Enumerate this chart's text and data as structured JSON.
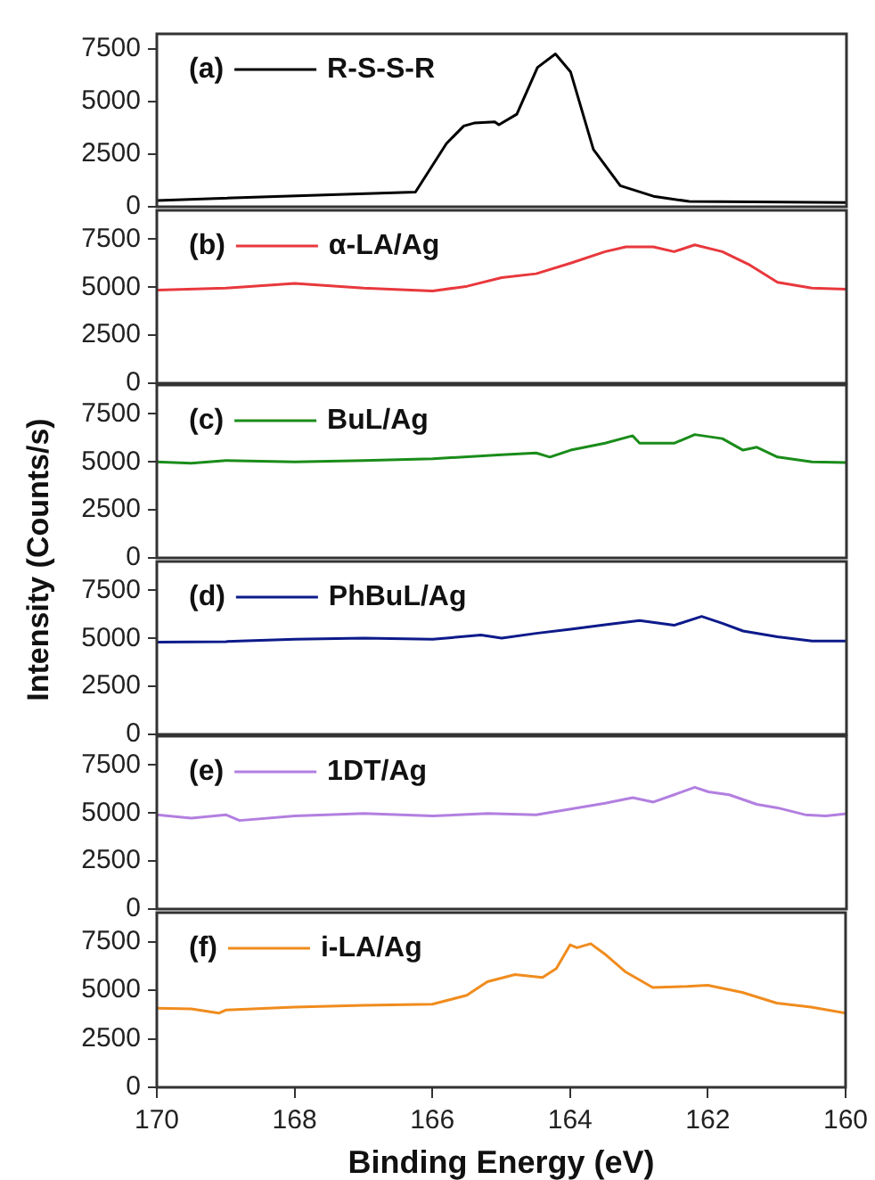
{
  "chart_data": [
    {
      "type": "line",
      "annotations": [
        "(a)"
      ],
      "legend": "top left",
      "tick_labels": "y",
      "xlim": [
        170,
        160
      ],
      "xticks": [
        170,
        168,
        166,
        164,
        162,
        160
      ],
      "ylim": [
        0,
        8200
      ],
      "yticks": [
        0,
        2500,
        5000,
        7500
      ],
      "series": [
        {
          "name": "R-S-S-R",
          "color": "#000000",
          "x": [
            170,
            166.25,
            165.8,
            165.55,
            165.4,
            165.1,
            165.04,
            164.78,
            164.48,
            164.22,
            164.0,
            163.67,
            163.28,
            162.8,
            162.28,
            160
          ],
          "values": [
            300,
            700,
            3000,
            3830,
            3970,
            4030,
            3890,
            4390,
            6610,
            7250,
            6390,
            2720,
            1000,
            500,
            250,
            200
          ]
        }
      ]
    },
    {
      "type": "line",
      "annotations": [
        "(b)"
      ],
      "legend": "top left",
      "tick_labels": "y",
      "xlim": [
        170,
        160
      ],
      "xticks": [
        170,
        168,
        166,
        164,
        162,
        160
      ],
      "ylim": [
        0,
        9000
      ],
      "yticks": [
        0,
        2500,
        5000,
        7500
      ],
      "series": [
        {
          "name": "α-LA/Ag",
          "color": "#e8383d",
          "x": [
            170,
            169,
            168,
            167,
            166,
            165.5,
            165,
            164.5,
            164,
            163.5,
            163.2,
            162.8,
            162.5,
            162.2,
            161.8,
            161.4,
            161,
            160.5,
            160
          ],
          "values": [
            4850,
            4950,
            5200,
            4950,
            4800,
            5050,
            5500,
            5700,
            6250,
            6850,
            7100,
            7100,
            6850,
            7200,
            6850,
            6150,
            5250,
            4950,
            4900
          ]
        }
      ]
    },
    {
      "type": "line",
      "annotations": [
        "(c)"
      ],
      "legend": "top left",
      "tick_labels": "y",
      "ylabel": "Intensity (Counts/s)",
      "xlim": [
        170,
        160
      ],
      "xticks": [
        170,
        168,
        166,
        164,
        162,
        160
      ],
      "ylim": [
        0,
        9000
      ],
      "yticks": [
        0,
        2500,
        5000,
        7500
      ],
      "series": [
        {
          "name": "BuL/Ag",
          "color": "#1a8c1a",
          "x": [
            170,
            169.5,
            169,
            168,
            167,
            166,
            165,
            164.5,
            164.3,
            164,
            163.5,
            163.1,
            163,
            162.5,
            162.2,
            161.8,
            161.5,
            161.3,
            161,
            160.5,
            160
          ],
          "values": [
            5000,
            4930,
            5070,
            5000,
            5070,
            5160,
            5370,
            5460,
            5250,
            5610,
            5970,
            6360,
            5970,
            5970,
            6420,
            6210,
            5610,
            5760,
            5250,
            5000,
            4960
          ]
        }
      ]
    },
    {
      "type": "line",
      "annotations": [
        "(d)"
      ],
      "legend": "top left",
      "tick_labels": "y",
      "xlim": [
        170,
        160
      ],
      "xticks": [
        170,
        168,
        166,
        164,
        162,
        160
      ],
      "ylim": [
        0,
        9000
      ],
      "yticks": [
        0,
        2500,
        5000,
        7500
      ],
      "series": [
        {
          "name": "PhBuL/Ag",
          "color": "#0d1a8a",
          "x": [
            170,
            169,
            168,
            167,
            166,
            165.3,
            165,
            164.5,
            164,
            163.5,
            163,
            162.5,
            162.1,
            161.8,
            161.5,
            161,
            160.5,
            160
          ],
          "values": [
            4800,
            4830,
            4950,
            5010,
            4950,
            5170,
            5010,
            5260,
            5470,
            5710,
            5930,
            5680,
            6140,
            5780,
            5380,
            5080,
            4860,
            4860
          ]
        }
      ]
    },
    {
      "type": "line",
      "annotations": [
        "(e)"
      ],
      "legend": "top left",
      "tick_labels": "y",
      "xlim": [
        170,
        160
      ],
      "xticks": [
        170,
        168,
        166,
        164,
        162,
        160
      ],
      "ylim": [
        0,
        9000
      ],
      "yticks": [
        0,
        2500,
        5000,
        7500
      ],
      "series": [
        {
          "name": "1DT/Ag",
          "color": "#b27fe0",
          "x": [
            170,
            169.5,
            169,
            168.8,
            168,
            167,
            166,
            165.2,
            164.5,
            164,
            163.5,
            163.1,
            162.8,
            162.5,
            162.2,
            162,
            161.7,
            161.3,
            161,
            160.6,
            160.3,
            160
          ],
          "values": [
            4910,
            4730,
            4910,
            4610,
            4850,
            4970,
            4850,
            4970,
            4910,
            5210,
            5510,
            5800,
            5570,
            5950,
            6340,
            6100,
            5950,
            5450,
            5270,
            4910,
            4850,
            4970
          ]
        }
      ]
    },
    {
      "type": "line",
      "annotations": [
        "(f)"
      ],
      "legend": "top left",
      "xlabel": "Binding Energy (eV)",
      "xlim": [
        170,
        160
      ],
      "xticks": [
        170,
        168,
        166,
        164,
        162,
        160
      ],
      "ylim": [
        0,
        9000
      ],
      "yticks": [
        0,
        2500,
        5000,
        7500
      ],
      "series": [
        {
          "name": "i-LA/Ag",
          "color": "#f08c1e",
          "x": [
            170,
            169.5,
            169.1,
            169,
            168,
            167,
            166,
            165.5,
            165.2,
            164.8,
            164.4,
            164.2,
            164,
            163.9,
            163.7,
            163.5,
            163.2,
            162.8,
            162.3,
            162,
            161.5,
            161,
            160.5,
            160
          ],
          "values": [
            4070,
            4040,
            3820,
            3980,
            4130,
            4220,
            4280,
            4740,
            5440,
            5810,
            5660,
            6120,
            7340,
            7190,
            7400,
            6880,
            5960,
            5140,
            5200,
            5260,
            4890,
            4340,
            4130,
            3820
          ]
        }
      ]
    }
  ]
}
